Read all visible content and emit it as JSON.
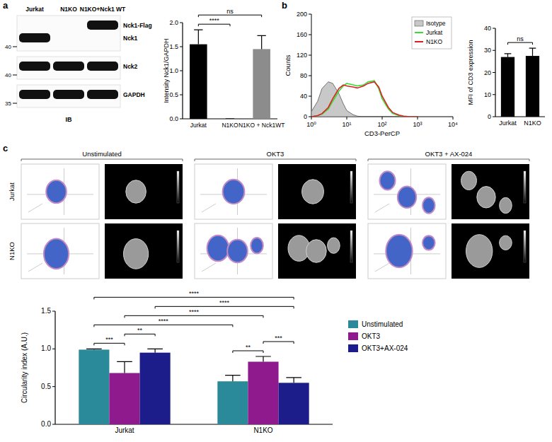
{
  "panel_labels": [
    "a",
    "b",
    "c"
  ],
  "blot": {
    "lanes": [
      "Jurkat",
      "N1KO",
      "N1KO+Nck1 WT"
    ],
    "strips": [
      {
        "marker": 40,
        "bands": [
          {
            "label": "Nck1-Flag",
            "present": [
              false,
              false,
              true
            ]
          },
          {
            "label": "Nck1",
            "present": [
              true,
              false,
              false
            ]
          }
        ]
      },
      {
        "marker": 40,
        "bands": [
          {
            "label": "Nck2",
            "present": [
              true,
              true,
              true
            ]
          }
        ]
      },
      {
        "marker": 35,
        "bands": [
          {
            "label": "GAPDH",
            "present": [
              true,
              true,
              true
            ]
          }
        ]
      }
    ],
    "footer": "IB"
  },
  "microscopy": {
    "columns": [
      "Unstimulated",
      "OKT3",
      "OKT3 + AX-024"
    ],
    "rows": [
      "Jurkat",
      "N1KO"
    ]
  },
  "chart_data": [
    {
      "type": "bar",
      "y_label": "Intensity Nck1/GAPDH",
      "categories": [
        "Jurkat",
        "N1KO",
        "N1KO + Nck1WT"
      ],
      "values": [
        1.55,
        0,
        1.45
      ],
      "errors": [
        0.3,
        0,
        0.28
      ],
      "colors": [
        "#000000",
        "#000000",
        "#8c8c8c"
      ],
      "ylim": [
        0,
        2
      ],
      "yticks": [
        {
          "value": 0,
          "label": "0.0"
        },
        {
          "value": 0.5,
          "label": "0.5"
        },
        {
          "value": 1,
          "label": "1.0"
        },
        {
          "value": 1.5,
          "label": "1.5"
        },
        {
          "value": 2,
          "label": "2.0"
        }
      ],
      "annotations": [
        {
          "text": "****",
          "between": [
            "Jurkat",
            "N1KO"
          ]
        },
        {
          "text": "ns",
          "between": [
            "Jurkat",
            "N1KO + Nck1WT"
          ]
        }
      ]
    },
    {
      "type": "line",
      "x_label": "CD3-PerCP",
      "y_label": "Counts",
      "log": "x",
      "x": [
        1,
        1.5,
        2,
        3,
        4,
        6,
        8,
        10,
        15,
        20,
        30,
        40,
        60,
        80,
        100,
        150,
        200,
        300,
        400,
        600,
        1000
      ],
      "series": [
        {
          "name": "Isotype",
          "type": "area",
          "color": "#c8c8c8",
          "values": [
            10,
            30,
            55,
            68,
            65,
            45,
            25,
            12,
            4,
            1,
            0,
            0,
            0,
            0,
            0,
            0,
            0,
            0,
            0,
            0,
            0
          ]
        },
        {
          "name": "Jurkat",
          "type": "line",
          "color": "#33dd33",
          "values": [
            0,
            2,
            5,
            15,
            30,
            50,
            60,
            65,
            62,
            60,
            62,
            68,
            70,
            55,
            35,
            15,
            6,
            2,
            1,
            0,
            0
          ]
        },
        {
          "name": "N1KO",
          "type": "line",
          "color": "#e02020",
          "values": [
            0,
            2,
            6,
            18,
            35,
            55,
            62,
            60,
            58,
            56,
            60,
            65,
            68,
            58,
            40,
            18,
            8,
            3,
            1,
            0,
            0
          ]
        }
      ],
      "xlim": [
        1,
        10000
      ],
      "xticks": [
        {
          "value": 1,
          "label": "10⁰"
        },
        {
          "value": 10,
          "label": "10¹"
        },
        {
          "value": 100,
          "label": "10²"
        },
        {
          "value": 1000,
          "label": "10³"
        },
        {
          "value": 10000,
          "label": "10⁴"
        }
      ],
      "ylim": [
        0,
        200
      ],
      "yticks": [
        0,
        40,
        80,
        120,
        160,
        200
      ],
      "legend": "top-right"
    },
    {
      "type": "bar",
      "y_label": "MFI of CD3 expression",
      "categories": [
        "Jurkat",
        "N1KO"
      ],
      "values": [
        27,
        27.5
      ],
      "errors": [
        1.5,
        3.5
      ],
      "color": "#000000",
      "ylim": [
        0,
        40
      ],
      "yticks": [
        0,
        10,
        20,
        30,
        40
      ],
      "annotations": [
        {
          "text": "ns",
          "between": [
            "Jurkat",
            "N1KO"
          ]
        }
      ]
    },
    {
      "type": "bar",
      "y_label": "Circularity index (A.U.)",
      "categories": [
        "Jurkat",
        "N1KO"
      ],
      "series": [
        {
          "name": "Unstimulated",
          "color": "#2b8a99",
          "values": [
            0.99,
            0.57
          ],
          "errors": [
            0.01,
            0.08
          ]
        },
        {
          "name": "OKT3",
          "color": "#8e1a8e",
          "values": [
            0.68,
            0.83
          ],
          "errors": [
            0.15,
            0.07
          ]
        },
        {
          "name": "OKT3+AX-024",
          "color": "#1c1c8a",
          "values": [
            0.95,
            0.55
          ],
          "errors": [
            0.05,
            0.07
          ]
        }
      ],
      "ylim": [
        0,
        1.5
      ],
      "yticks": [
        {
          "value": 0,
          "label": "0.0"
        },
        {
          "value": 0.5,
          "label": "0.5"
        },
        {
          "value": 1,
          "label": "1.0"
        },
        {
          "value": 1.5,
          "label": "1.5"
        }
      ],
      "legend": "right",
      "annotations": [
        {
          "text": "***",
          "between": [
            [
              "Jurkat",
              "Unstimulated"
            ],
            [
              "Jurkat",
              "OKT3"
            ]
          ]
        },
        {
          "text": "**",
          "between": [
            [
              "Jurkat",
              "OKT3"
            ],
            [
              "Jurkat",
              "OKT3+AX-024"
            ]
          ]
        },
        {
          "text": "**",
          "between": [
            [
              "N1KO",
              "Unstimulated"
            ],
            [
              "N1KO",
              "OKT3"
            ]
          ]
        },
        {
          "text": "***",
          "between": [
            [
              "N1KO",
              "OKT3"
            ],
            [
              "N1KO",
              "OKT3+AX-024"
            ]
          ]
        },
        {
          "text": "****",
          "between": [
            [
              "Jurkat",
              "Unstimulated"
            ],
            [
              "N1KO",
              "Unstimulated"
            ]
          ]
        },
        {
          "text": "****",
          "between": [
            [
              "Jurkat",
              "OKT3"
            ],
            [
              "N1KO",
              "OKT3"
            ]
          ]
        },
        {
          "text": "****",
          "between": [
            [
              "Jurkat",
              "OKT3+AX-024"
            ],
            [
              "N1KO",
              "OKT3+AX-024"
            ]
          ]
        },
        {
          "text": "****",
          "between": [
            [
              "Jurkat",
              "Unstimulated"
            ],
            [
              "N1KO",
              "OKT3+AX-024"
            ]
          ]
        }
      ]
    }
  ]
}
